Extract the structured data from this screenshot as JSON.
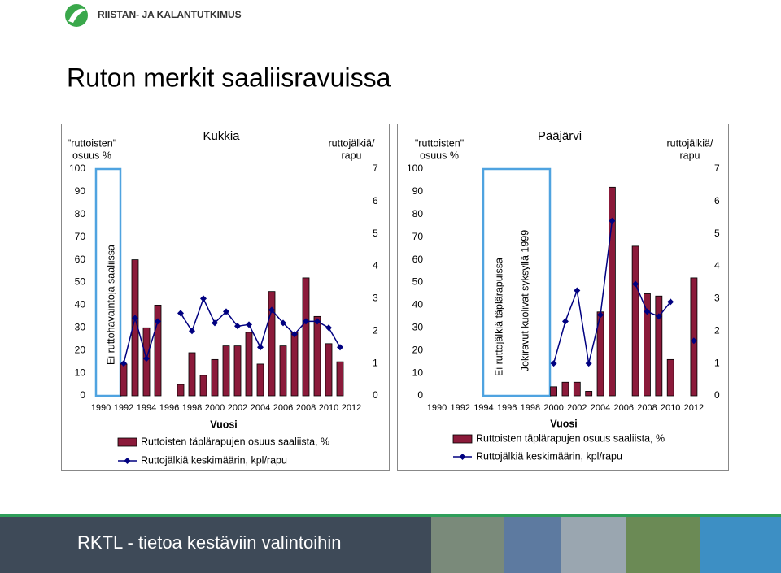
{
  "header": {
    "logo": "RIISTAN- JA KALANTUTKIMUS",
    "title": "Ruton merkit saaliisravuissa"
  },
  "footer": "RKTL - tietoa kestäviin valintoihin",
  "chart_data": [
    {
      "type": "bar-line",
      "title": "Kukkia",
      "ylabel": [
        "\"ruttoisten\"",
        "osuus %"
      ],
      "y2label": [
        "ruttojälkiä/",
        "rapu"
      ],
      "xlabel": "Vuosi",
      "annotations": [
        "Ei ruttohavaintoja saaliissa"
      ],
      "categories": [
        "1990",
        null,
        "1992",
        null,
        "1994",
        null,
        "1996",
        null,
        "1998",
        null,
        "2000",
        null,
        "2002",
        null,
        "2004",
        null,
        "2006",
        null,
        "2008",
        null,
        "2010",
        null,
        "2012"
      ],
      "series": [
        {
          "name": "Ruttoisten täplärapujen osuus saaliista, %",
          "type": "bar",
          "color": "#8b1a3a",
          "values": [
            null,
            null,
            14,
            60,
            30,
            40,
            null,
            5,
            19,
            9,
            16,
            22,
            22,
            28,
            14,
            46,
            22,
            28,
            52,
            35,
            23,
            15,
            null
          ]
        },
        {
          "name": "Ruttojälkiä keskimäärin, kpl/rapu",
          "type": "line",
          "axis": "y2",
          "color": "#000080",
          "values": [
            null,
            null,
            1.0,
            2.4,
            1.15,
            2.3,
            null,
            2.55,
            2.0,
            3.0,
            2.25,
            2.6,
            2.15,
            2.2,
            1.5,
            2.65,
            2.25,
            1.9,
            2.3,
            2.3,
            2.1,
            1.5,
            null
          ]
        }
      ],
      "ylim": [
        0,
        100
      ],
      "yticks": [
        0,
        10,
        20,
        30,
        40,
        50,
        60,
        70,
        80,
        90,
        100
      ],
      "y2lim": [
        0,
        7
      ],
      "y2ticks": [
        0,
        1,
        2,
        3,
        4,
        5,
        6,
        7
      ]
    },
    {
      "type": "bar-line",
      "title": "Pääjärvi",
      "ylabel": [
        "\"ruttoisten\"",
        "osuus %"
      ],
      "y2label": [
        "ruttojälkiä/",
        "rapu"
      ],
      "xlabel": "Vuosi",
      "annotations": [
        "Ei ruttojälkiä täplärapuissa",
        "Jokiravut kuolivat syksyllä 1999"
      ],
      "categories": [
        "1990",
        null,
        "1992",
        null,
        "1994",
        null,
        "1996",
        null,
        "1998",
        null,
        "2000",
        null,
        "2002",
        null,
        "2004",
        null,
        "2006",
        null,
        "2008",
        null,
        "2010",
        null,
        "2012"
      ],
      "series": [
        {
          "name": "Ruttoisten täplärapujen osuus saaliista, %",
          "type": "bar",
          "color": "#8b1a3a",
          "values": [
            null,
            null,
            null,
            null,
            null,
            null,
            null,
            null,
            null,
            null,
            4,
            6,
            6,
            2,
            37,
            92,
            null,
            66,
            45,
            44,
            16,
            null,
            52
          ]
        },
        {
          "name": "Ruttojälkiä keskimäärin, kpl/rapu",
          "type": "line",
          "axis": "y2",
          "color": "#000080",
          "values": [
            null,
            null,
            null,
            null,
            null,
            null,
            null,
            null,
            null,
            null,
            1.0,
            2.3,
            3.25,
            1.0,
            2.5,
            5.4,
            null,
            3.45,
            2.6,
            2.45,
            2.9,
            null,
            1.7
          ]
        }
      ],
      "ylim": [
        0,
        100
      ],
      "yticks": [
        0,
        10,
        20,
        30,
        40,
        50,
        60,
        70,
        80,
        90,
        100
      ],
      "y2lim": [
        0,
        7
      ],
      "y2ticks": [
        0,
        1,
        2,
        3,
        4,
        5,
        6,
        7
      ]
    }
  ]
}
